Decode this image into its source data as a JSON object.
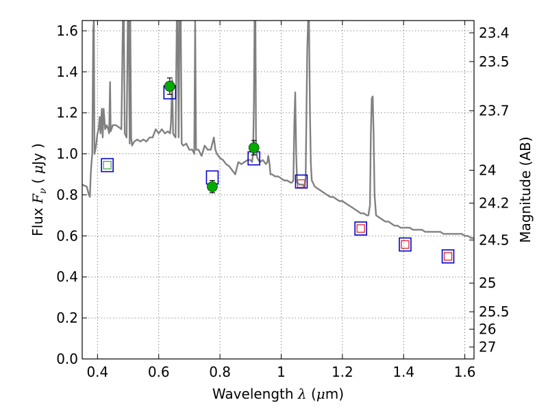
{
  "chart_data": {
    "type": "scatter",
    "title": "",
    "xlabel_prefix": "Wavelength ",
    "xlabel_symbol": "λ",
    "xlabel_suffix": " (",
    "xlabel_unit_mu": "μ",
    "xlabel_unit_rest": "m)",
    "ylabel_prefix": "Flux ",
    "ylabel_symbol": "F",
    "ylabel_sub": "ν",
    "ylabel_mid": " ( ",
    "ylabel_mu": "μ",
    "ylabel_rest": "Jy )",
    "y2label": "Magnitude (AB)",
    "xlim": [
      0.35,
      1.63
    ],
    "ylim": [
      0.0,
      1.65
    ],
    "grid": true,
    "xticks": [
      {
        "v": 0.4,
        "label": "0.4"
      },
      {
        "v": 0.6,
        "label": "0.6"
      },
      {
        "v": 0.8,
        "label": "0.8"
      },
      {
        "v": 1.0,
        "label": "1"
      },
      {
        "v": 1.2,
        "label": "1.2"
      },
      {
        "v": 1.4,
        "label": "1.4"
      },
      {
        "v": 1.6,
        "label": "1.6"
      }
    ],
    "yticks": [
      {
        "v": 0.0,
        "label": "0.0"
      },
      {
        "v": 0.2,
        "label": "0.2"
      },
      {
        "v": 0.4,
        "label": "0.4"
      },
      {
        "v": 0.6,
        "label": "0.6"
      },
      {
        "v": 0.8,
        "label": "0.8"
      },
      {
        "v": 1.0,
        "label": "1.0"
      },
      {
        "v": 1.2,
        "label": "1.2"
      },
      {
        "v": 1.4,
        "label": "1.4"
      },
      {
        "v": 1.6,
        "label": "1.6"
      }
    ],
    "y2ticks": [
      {
        "label": "23.4",
        "flux": 1.59
      },
      {
        "label": "23.5",
        "flux": 1.45
      },
      {
        "label": "23.7",
        "flux": 1.21
      },
      {
        "label": "24",
        "flux": 0.92
      },
      {
        "label": "24.2",
        "flux": 0.76
      },
      {
        "label": "24.5",
        "flux": 0.58
      },
      {
        "label": "25",
        "flux": 0.37
      },
      {
        "label": "25.5",
        "flux": 0.23
      },
      {
        "label": "26",
        "flux": 0.145
      },
      {
        "label": "27",
        "flux": 0.058
      }
    ],
    "series": [
      {
        "kind": "spectrum",
        "color": "#808080",
        "points": [
          [
            0.35,
            0.85
          ],
          [
            0.365,
            0.84
          ],
          [
            0.372,
            0.8
          ],
          [
            0.375,
            0.79
          ],
          [
            0.378,
            0.9
          ],
          [
            0.38,
            0.95
          ],
          [
            0.383,
            1.0
          ],
          [
            0.386,
            1.6
          ],
          [
            0.388,
            1.65
          ],
          [
            0.39,
            1.0
          ],
          [
            0.393,
            1.02
          ],
          [
            0.396,
            1.05
          ],
          [
            0.4,
            1.1
          ],
          [
            0.404,
            1.12
          ],
          [
            0.407,
            1.18
          ],
          [
            0.41,
            1.1
          ],
          [
            0.414,
            1.22
          ],
          [
            0.417,
            1.08
          ],
          [
            0.42,
            1.22
          ],
          [
            0.425,
            1.12
          ],
          [
            0.43,
            1.14
          ],
          [
            0.435,
            1.12
          ],
          [
            0.438,
            1.1
          ],
          [
            0.441,
            1.35
          ],
          [
            0.443,
            1.11
          ],
          [
            0.45,
            1.14
          ],
          [
            0.46,
            1.14
          ],
          [
            0.47,
            1.13
          ],
          [
            0.478,
            1.12
          ],
          [
            0.483,
            1.65
          ],
          [
            0.486,
            1.65
          ],
          [
            0.489,
            1.1
          ],
          [
            0.495,
            1.08
          ],
          [
            0.499,
            1.65
          ],
          [
            0.502,
            1.65
          ],
          [
            0.505,
            1.05
          ],
          [
            0.507,
            1.65
          ],
          [
            0.51,
            1.08
          ],
          [
            0.513,
            1.04
          ],
          [
            0.52,
            1.06
          ],
          [
            0.53,
            1.07
          ],
          [
            0.54,
            1.06
          ],
          [
            0.55,
            1.07
          ],
          [
            0.56,
            1.06
          ],
          [
            0.57,
            1.08
          ],
          [
            0.58,
            1.08
          ],
          [
            0.59,
            1.12
          ],
          [
            0.6,
            1.1
          ],
          [
            0.61,
            1.12
          ],
          [
            0.62,
            1.1
          ],
          [
            0.63,
            1.11
          ],
          [
            0.637,
            1.1
          ],
          [
            0.64,
            1.15
          ],
          [
            0.644,
            1.36
          ],
          [
            0.647,
            1.1
          ],
          [
            0.65,
            1.09
          ],
          [
            0.655,
            1.08
          ],
          [
            0.659,
            1.65
          ],
          [
            0.662,
            1.65
          ],
          [
            0.665,
            1.08
          ],
          [
            0.668,
            1.65
          ],
          [
            0.672,
            1.65
          ],
          [
            0.675,
            1.05
          ],
          [
            0.68,
            1.04
          ],
          [
            0.69,
            1.05
          ],
          [
            0.7,
            1.02
          ],
          [
            0.71,
            1.02
          ],
          [
            0.716,
            1.0
          ],
          [
            0.719,
            1.65
          ],
          [
            0.722,
            1.02
          ],
          [
            0.73,
            1.02
          ],
          [
            0.74,
            0.99
          ],
          [
            0.75,
            1.04
          ],
          [
            0.76,
            1.02
          ],
          [
            0.77,
            1.02
          ],
          [
            0.78,
            1.08
          ],
          [
            0.785,
            1.02
          ],
          [
            0.79,
            1.0
          ],
          [
            0.8,
            0.98
          ],
          [
            0.81,
            0.97
          ],
          [
            0.82,
            0.95
          ],
          [
            0.83,
            0.94
          ],
          [
            0.84,
            0.92
          ],
          [
            0.85,
            0.9
          ],
          [
            0.86,
            0.96
          ],
          [
            0.87,
            0.95
          ],
          [
            0.88,
            0.96
          ],
          [
            0.89,
            0.97
          ],
          [
            0.9,
            0.97
          ],
          [
            0.905,
            0.96
          ],
          [
            0.908,
            1.0
          ],
          [
            0.911,
            1.25
          ],
          [
            0.913,
            1.65
          ],
          [
            0.916,
            1.65
          ],
          [
            0.918,
            1.02
          ],
          [
            0.922,
            0.98
          ],
          [
            0.93,
            0.96
          ],
          [
            0.94,
            0.97
          ],
          [
            0.95,
            0.95
          ],
          [
            0.955,
            0.96
          ],
          [
            0.958,
            0.99
          ],
          [
            0.962,
            0.95
          ],
          [
            0.965,
            0.9
          ],
          [
            0.97,
            0.9
          ],
          [
            0.98,
            0.89
          ],
          [
            0.99,
            0.89
          ],
          [
            1.0,
            0.88
          ],
          [
            1.01,
            0.87
          ],
          [
            1.02,
            0.87
          ],
          [
            1.03,
            0.86
          ],
          [
            1.035,
            0.86
          ],
          [
            1.04,
            0.87
          ],
          [
            1.043,
            1.15
          ],
          [
            1.046,
            1.3
          ],
          [
            1.049,
            1.0
          ],
          [
            1.052,
            0.86
          ],
          [
            1.06,
            0.85
          ],
          [
            1.07,
            0.85
          ],
          [
            1.075,
            0.84
          ],
          [
            1.08,
            0.88
          ],
          [
            1.085,
            1.5
          ],
          [
            1.088,
            1.65
          ],
          [
            1.091,
            1.65
          ],
          [
            1.094,
            1.2
          ],
          [
            1.097,
            0.95
          ],
          [
            1.1,
            0.87
          ],
          [
            1.11,
            0.84
          ],
          [
            1.12,
            0.83
          ],
          [
            1.13,
            0.82
          ],
          [
            1.14,
            0.81
          ],
          [
            1.15,
            0.8
          ],
          [
            1.16,
            0.79
          ],
          [
            1.17,
            0.79
          ],
          [
            1.18,
            0.78
          ],
          [
            1.19,
            0.77
          ],
          [
            1.2,
            0.77
          ],
          [
            1.21,
            0.76
          ],
          [
            1.22,
            0.75
          ],
          [
            1.23,
            0.74
          ],
          [
            1.24,
            0.73
          ],
          [
            1.25,
            0.72
          ],
          [
            1.26,
            0.71
          ],
          [
            1.27,
            0.71
          ],
          [
            1.28,
            0.7
          ],
          [
            1.285,
            0.7
          ],
          [
            1.29,
            0.75
          ],
          [
            1.293,
            1.1
          ],
          [
            1.296,
            1.27
          ],
          [
            1.299,
            1.28
          ],
          [
            1.302,
            1.1
          ],
          [
            1.305,
            0.8
          ],
          [
            1.31,
            0.7
          ],
          [
            1.32,
            0.69
          ],
          [
            1.33,
            0.68
          ],
          [
            1.34,
            0.67
          ],
          [
            1.35,
            0.67
          ],
          [
            1.36,
            0.66
          ],
          [
            1.37,
            0.65
          ],
          [
            1.38,
            0.65
          ],
          [
            1.39,
            0.64
          ],
          [
            1.4,
            0.64
          ],
          [
            1.41,
            0.64
          ],
          [
            1.42,
            0.64
          ],
          [
            1.43,
            0.63
          ],
          [
            1.44,
            0.63
          ],
          [
            1.45,
            0.63
          ],
          [
            1.46,
            0.63
          ],
          [
            1.47,
            0.62
          ],
          [
            1.48,
            0.62
          ],
          [
            1.49,
            0.62
          ],
          [
            1.5,
            0.62
          ],
          [
            1.51,
            0.62
          ],
          [
            1.52,
            0.62
          ],
          [
            1.53,
            0.61
          ],
          [
            1.54,
            0.61
          ],
          [
            1.55,
            0.61
          ],
          [
            1.56,
            0.61
          ],
          [
            1.57,
            0.61
          ],
          [
            1.58,
            0.61
          ],
          [
            1.59,
            0.61
          ],
          [
            1.6,
            0.6
          ],
          [
            1.61,
            0.6
          ],
          [
            1.62,
            0.59
          ],
          [
            1.63,
            0.59
          ]
        ]
      },
      {
        "kind": "model_photometry",
        "marker": "square-blue",
        "color": "#0000cc",
        "points": [
          [
            0.432,
            0.945
          ],
          [
            0.636,
            1.3
          ],
          [
            0.775,
            0.885
          ],
          [
            0.911,
            0.978
          ],
          [
            1.066,
            0.865
          ],
          [
            1.26,
            0.636
          ],
          [
            1.405,
            0.558
          ],
          [
            1.545,
            0.5
          ]
        ]
      },
      {
        "kind": "small_squares",
        "marker": "square-small",
        "points": [
          {
            "x": 0.432,
            "y": 0.945,
            "color": "#44aa44"
          },
          {
            "x": 1.066,
            "y": 0.855,
            "color": "#dd2222"
          },
          {
            "x": 1.26,
            "y": 0.636,
            "color": "#dd2222"
          },
          {
            "x": 1.405,
            "y": 0.558,
            "color": "#dd2222"
          },
          {
            "x": 1.545,
            "y": 0.5,
            "color": "#dd2222"
          }
        ]
      },
      {
        "kind": "observed",
        "marker": "circle-green",
        "color": "#00aa00",
        "points": [
          {
            "x": 0.636,
            "y": 1.33,
            "err": 0.04
          },
          {
            "x": 0.775,
            "y": 0.84,
            "err": 0.03
          },
          {
            "x": 0.911,
            "y": 1.03,
            "err": 0.035
          }
        ]
      }
    ]
  }
}
